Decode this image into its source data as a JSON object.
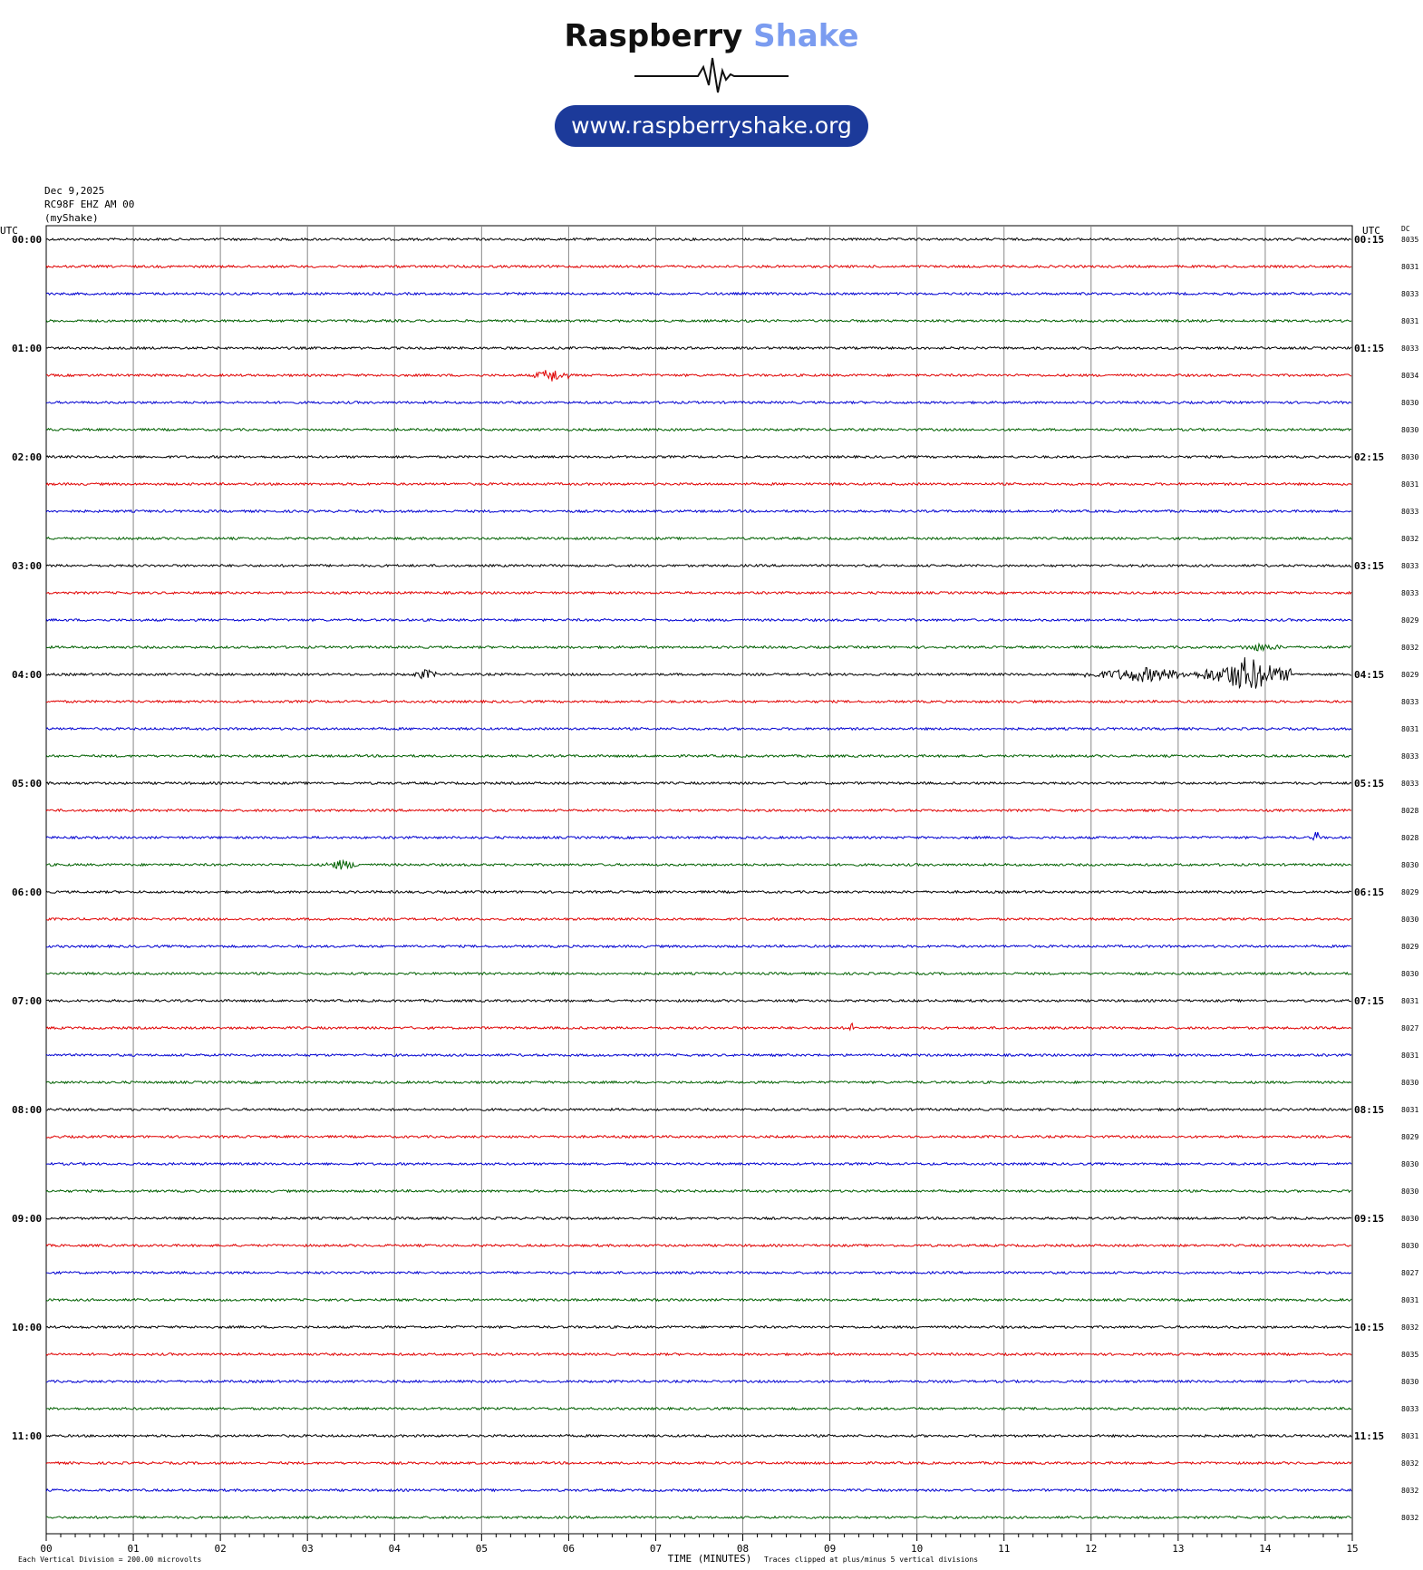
{
  "logo": {
    "brand_main": "Raspberry",
    "brand_accent": "Shake",
    "brand_accent_color": "#7b9cf0",
    "url": "www.raspberryshake.org",
    "url_background": "#1c3a9a"
  },
  "header": {
    "date": "Dec 9,2025",
    "station": "RC98F EHZ AM 00",
    "network": "(myShake)"
  },
  "axis": {
    "left_label": "UTC",
    "right_label": "UTC",
    "dc_label": "DC",
    "x_title": "TIME (MINUTES)",
    "footer_left": "Each Vertical Division = 200.00 microvolts",
    "footer_right": "Traces clipped at plus/minus 5 vertical divisions"
  },
  "chart_data": {
    "type": "line",
    "xlabel": "TIME (MINUTES)",
    "x_range": [
      0,
      15
    ],
    "x_ticks": [
      "00",
      "01",
      "02",
      "03",
      "04",
      "05",
      "06",
      "07",
      "08",
      "09",
      "10",
      "11",
      "12",
      "13",
      "14",
      "15"
    ],
    "grid": true,
    "trace_colors": [
      "#000000",
      "#e00000",
      "#0000d0",
      "#006000"
    ],
    "left_hour_labels": [
      "00:00",
      "01:00",
      "02:00",
      "03:00",
      "04:00",
      "05:00",
      "06:00",
      "07:00",
      "08:00",
      "09:00",
      "10:00",
      "11:00"
    ],
    "right_hour_labels": [
      "00:15",
      "01:15",
      "02:15",
      "03:15",
      "04:15",
      "05:15",
      "06:15",
      "07:15",
      "08:15",
      "09:15",
      "10:15",
      "11:15"
    ],
    "dc_values": [
      "8035",
      "8031",
      "8033",
      "8031",
      "8033",
      "8034",
      "8030",
      "8030",
      "8030",
      "8031",
      "8033",
      "8032",
      "8033",
      "8033",
      "8029",
      "8032",
      "8029",
      "8033",
      "8031",
      "8033",
      "8033",
      "8028",
      "8028",
      "8030",
      "8029",
      "8030",
      "8029",
      "8030",
      "8031",
      "8027",
      "8031",
      "8030",
      "8031",
      "8029",
      "8030",
      "8030",
      "8030",
      "8030",
      "8027",
      "8031",
      "8032",
      "8035",
      "8030",
      "8033",
      "8031",
      "8032",
      "8032",
      "8032"
    ],
    "events": [
      {
        "trace": 5,
        "start_min": 5.6,
        "end_min": 6.0,
        "amplitude": 3
      },
      {
        "trace": 15,
        "start_min": 13.7,
        "end_min": 14.2,
        "amplitude": 1.5
      },
      {
        "trace": 16,
        "start_min": 4.2,
        "end_min": 4.5,
        "amplitude": 2
      },
      {
        "trace": 16,
        "start_min": 11.9,
        "end_min": 13.3,
        "amplitude": 3
      },
      {
        "trace": 16,
        "start_min": 13.3,
        "end_min": 14.3,
        "amplitude": 8
      },
      {
        "trace": 23,
        "start_min": 3.2,
        "end_min": 3.6,
        "amplitude": 2
      },
      {
        "trace": 22,
        "start_min": 14.55,
        "end_min": 14.62,
        "amplitude": 4
      },
      {
        "trace": 29,
        "start_min": 9.22,
        "end_min": 9.26,
        "amplitude": 10
      }
    ]
  }
}
